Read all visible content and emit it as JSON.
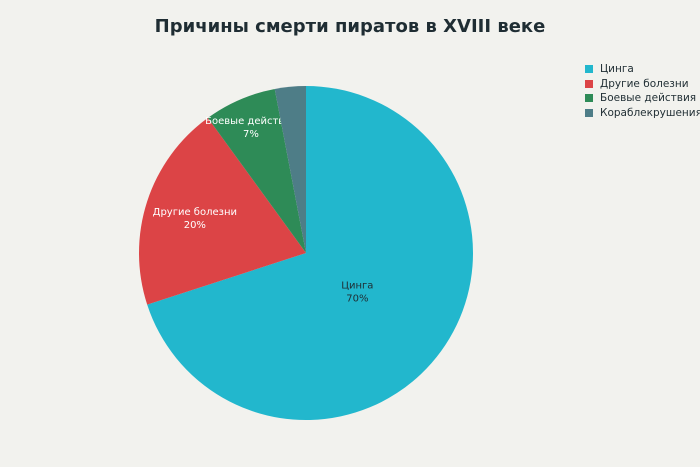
{
  "chart_data": {
    "type": "pie",
    "title": "Причины смерти пиратов в XVIII веке",
    "categories": [
      "Цинга",
      "Другие болезни",
      "Боевые действия",
      "Кораблекрушения"
    ],
    "values": [
      70,
      20,
      7,
      3
    ],
    "value_labels": [
      "70%",
      "20%",
      "7%",
      ""
    ],
    "colors": [
      "#22b7cd",
      "#dc4446",
      "#2e8b57",
      "#4e7d87"
    ],
    "label_colors": [
      "#1f2d33",
      "#ffffff",
      "#ffffff",
      "#ffffff"
    ],
    "start_angle_deg": 0,
    "direction": "clockwise",
    "legend_position": "top-right"
  }
}
